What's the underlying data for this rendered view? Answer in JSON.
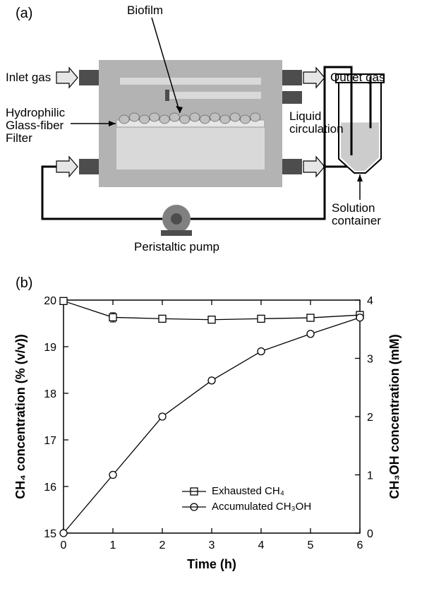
{
  "panelA": {
    "label": "(a)",
    "labels": {
      "biofilm": "Biofilm",
      "inletGas": "Inlet gas",
      "outletGas": "Outlet gas",
      "hydrophilicLine1": "Hydrophilic",
      "hydrophilicLine2": "Glass-fiber",
      "hydrophilicLine3": "Filter",
      "liquidCirculationLine1": "Liquid",
      "liquidCirculationLine2": "circulation",
      "peristalticPump": "Peristaltic pump",
      "solutionContainerLine1": "Solution",
      "solutionContainerLine2": "container"
    },
    "colors": {
      "reactorBody": "#b3b3b3",
      "reactorInner": "#d9d9d9",
      "fitting": "#4d4d4d",
      "arrowFill": "#e6e6e6",
      "pumpBody": "#808080",
      "pumpDark": "#4d4d4d",
      "containerOutline": "#000000",
      "liquid": "#cccccc",
      "biofilmCell": "#c0c0c0",
      "filter": "#e6e6e6",
      "tubing": "#000000"
    }
  },
  "panelB": {
    "label": "(b)",
    "chart": {
      "type": "line",
      "xlabel": "Time (h)",
      "ylabelLeft": "CH₄ concentration (% (v/v))",
      "ylabelRight": "CH₃OH concentration (mM)",
      "x": [
        0,
        1,
        2,
        3,
        4,
        5,
        6
      ],
      "xlim": [
        0,
        6
      ],
      "ylimLeft": [
        15,
        20
      ],
      "ylimRight": [
        0,
        4
      ],
      "xtickStep": 1,
      "ytickLeftStep": 1,
      "ytickRightStep": 1,
      "series": [
        {
          "name": "Exhausted CH₄",
          "marker": "square",
          "axis": "left",
          "values": [
            19.98,
            19.63,
            19.6,
            19.58,
            19.6,
            19.62,
            19.68
          ],
          "errors": [
            0.0,
            0.1,
            0.05,
            0.04,
            0.03,
            0.03,
            0.03
          ]
        },
        {
          "name": "Accumulated CH₃OH",
          "marker": "circle",
          "axis": "right",
          "values": [
            0.0,
            1.0,
            2.0,
            2.62,
            3.12,
            3.42,
            3.7
          ],
          "errors": [
            0.0,
            0.03,
            0.03,
            0.03,
            0.03,
            0.03,
            0.03
          ]
        }
      ],
      "colors": {
        "axis": "#000000",
        "line": "#000000",
        "markerFill": "#ffffff",
        "markerStroke": "#000000",
        "background": "#ffffff"
      },
      "fontSizes": {
        "axisLabel": 18,
        "tickLabel": 16,
        "legend": 15
      },
      "lineWidth": 1.3,
      "markerSize": 10
    }
  }
}
